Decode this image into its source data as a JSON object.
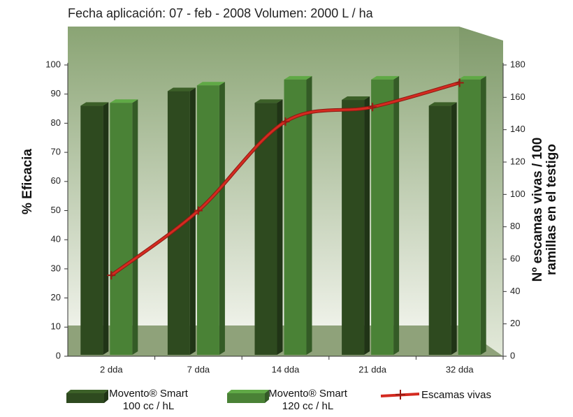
{
  "chart_data": {
    "type": "bar",
    "title": "Fecha aplicación: 07 - feb - 2008  Volumen: 2000 L / ha",
    "y_label": "% Eficacia",
    "y2_label": "Nº escamas vivas / 100 ramillas en el testigo",
    "categories": [
      "2 dda",
      "7 dda",
      "14 dda",
      "21 dda",
      "32 dda"
    ],
    "series": [
      {
        "name": "Movento® Smart 100 cc / hL",
        "color": "#2e4a1f",
        "type": "bar",
        "values": [
          86,
          91,
          87,
          88,
          86
        ]
      },
      {
        "name": "Movento® Smart 120 cc / hL",
        "color": "#4a8236",
        "type": "bar",
        "values": [
          87,
          93,
          95,
          95,
          95
        ]
      },
      {
        "name": "Escamas vivas",
        "color": "#d42a20",
        "type": "line",
        "axis": "y2",
        "values": [
          50,
          90,
          145,
          154,
          169
        ]
      }
    ],
    "ylim": [
      0,
      100
    ],
    "yticks": [
      0,
      10,
      20,
      30,
      40,
      50,
      60,
      70,
      80,
      90,
      100
    ],
    "y2lim": [
      0,
      180
    ],
    "y2ticks": [
      0,
      20,
      40,
      60,
      80,
      100,
      120,
      140,
      160,
      180
    ]
  }
}
